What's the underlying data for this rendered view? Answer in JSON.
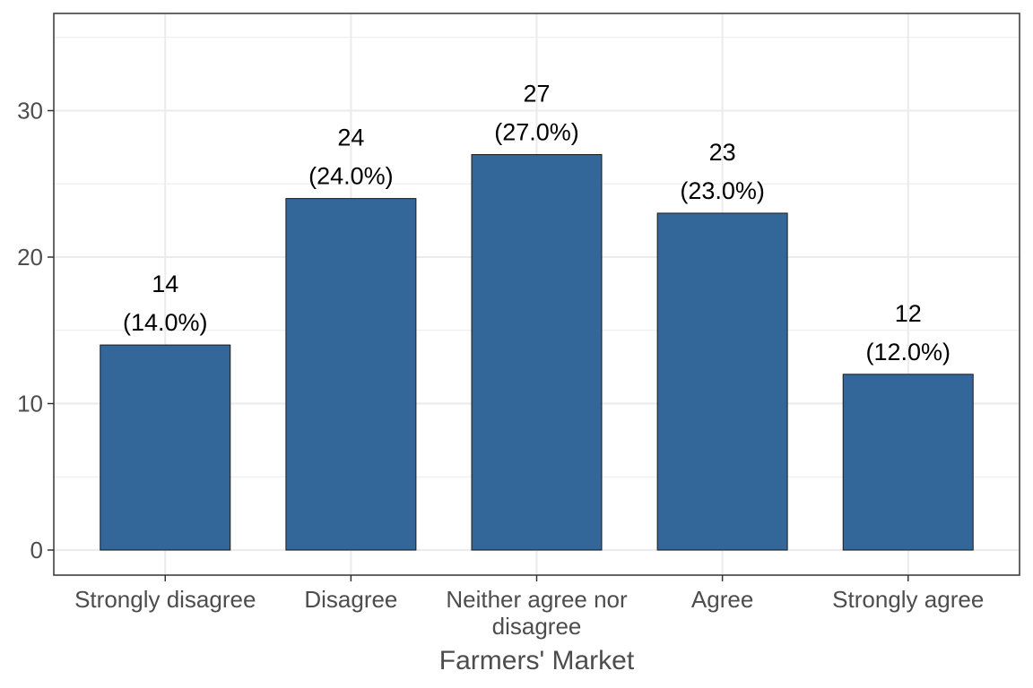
{
  "chart_data": {
    "type": "bar",
    "categories": [
      "Strongly disagree",
      "Disagree",
      "Neither agree nor disagree",
      "Agree",
      "Strongly agree"
    ],
    "values": [
      14,
      24,
      27,
      23,
      12
    ],
    "data_labels": [
      {
        "count": "14",
        "percent": "(14.0%)"
      },
      {
        "count": "24",
        "percent": "(24.0%)"
      },
      {
        "count": "27",
        "percent": "(27.0%)"
      },
      {
        "count": "23",
        "percent": "(23.0%)"
      },
      {
        "count": "12",
        "percent": "(12.0%)"
      }
    ],
    "xlabel": "Farmers' Market",
    "ylabel": "",
    "ylim": [
      0,
      35
    ],
    "yticks": [
      0,
      10,
      20,
      30
    ],
    "grid": true,
    "colors": {
      "bar": "#336699",
      "grid": "#ebebeb",
      "border": "#333333"
    }
  }
}
